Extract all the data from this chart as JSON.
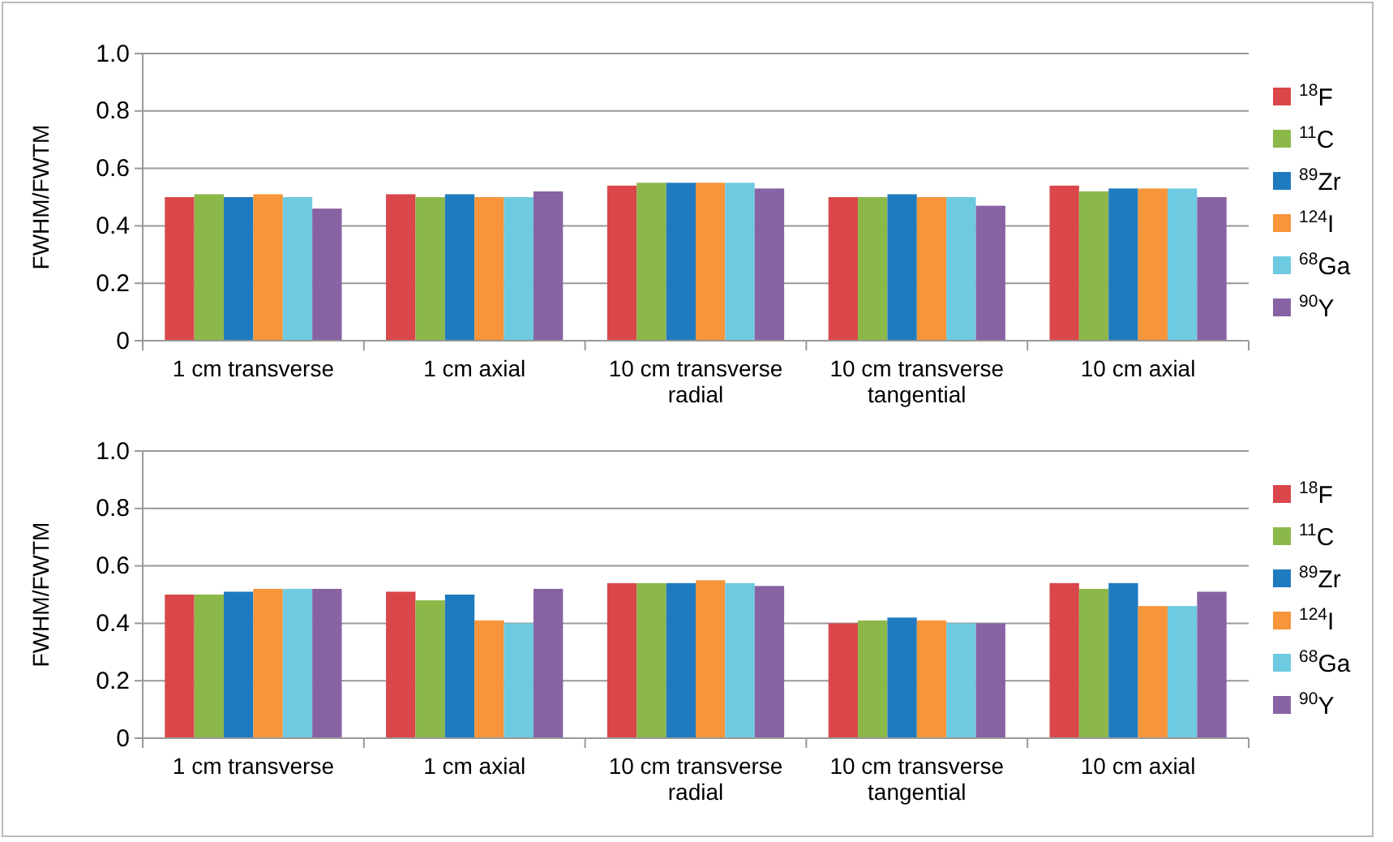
{
  "chart_data": [
    {
      "type": "bar",
      "ylabel": "FWHM/FWTM",
      "categories": [
        "1 cm transverse",
        "1 cm axial",
        "10 cm transverse radial",
        "10 cm transverse tangential",
        "10 cm axial"
      ],
      "ylim": [
        0,
        1
      ],
      "yticks": [
        0,
        0.2,
        0.4,
        0.6,
        0.8,
        {
          "value": 1,
          "label": "1.0"
        }
      ],
      "grid": "y",
      "legend": "right",
      "series": [
        {
          "name": "$^{18}$F",
          "color": "#d9474a",
          "values": [
            0.5,
            0.51,
            0.54,
            0.5,
            0.54
          ]
        },
        {
          "name": "$^{11}$C",
          "color": "#8cb84a",
          "values": [
            0.51,
            0.5,
            0.55,
            0.5,
            0.52
          ]
        },
        {
          "name": "$^{89}$Zr",
          "color": "#1f7bbf",
          "values": [
            0.5,
            0.51,
            0.55,
            0.51,
            0.53
          ]
        },
        {
          "name": "$^{124}$I",
          "color": "#f7953a",
          "values": [
            0.51,
            0.5,
            0.55,
            0.5,
            0.53
          ]
        },
        {
          "name": "$^{68}$Ga",
          "color": "#6ecae0",
          "values": [
            0.5,
            0.5,
            0.55,
            0.5,
            0.53
          ]
        },
        {
          "name": "$^{90}$Y",
          "color": "#8763a4",
          "values": [
            0.46,
            0.52,
            0.53,
            0.47,
            0.5
          ]
        }
      ]
    },
    {
      "type": "bar",
      "ylabel": "FWHM/FWTM",
      "categories": [
        "1 cm transverse",
        "1 cm axial",
        "10 cm transverse radial",
        "10 cm transverse tangential",
        "10 cm axial"
      ],
      "ylim": [
        0,
        1
      ],
      "yticks": [
        0,
        0.2,
        0.4,
        0.6,
        0.8,
        {
          "value": 1,
          "label": "1.0"
        }
      ],
      "grid": "y",
      "legend": "right",
      "series": [
        {
          "name": "$^{18}$F",
          "color": "#d9474a",
          "values": [
            0.5,
            0.51,
            0.54,
            0.4,
            0.54
          ]
        },
        {
          "name": "$^{11}$C",
          "color": "#8cb84a",
          "values": [
            0.5,
            0.48,
            0.54,
            0.41,
            0.52
          ]
        },
        {
          "name": "$^{89}$Zr",
          "color": "#1f7bbf",
          "values": [
            0.51,
            0.5,
            0.54,
            0.42,
            0.54
          ]
        },
        {
          "name": "$^{124}$I",
          "color": "#f7953a",
          "values": [
            0.52,
            0.41,
            0.55,
            0.41,
            0.46
          ]
        },
        {
          "name": "$^{68}$Ga",
          "color": "#6ecae0",
          "values": [
            0.52,
            0.4,
            0.54,
            0.4,
            0.46
          ]
        },
        {
          "name": "$^{90}$Y",
          "color": "#8763a4",
          "values": [
            0.52,
            0.52,
            0.53,
            0.4,
            0.51
          ]
        }
      ]
    }
  ]
}
